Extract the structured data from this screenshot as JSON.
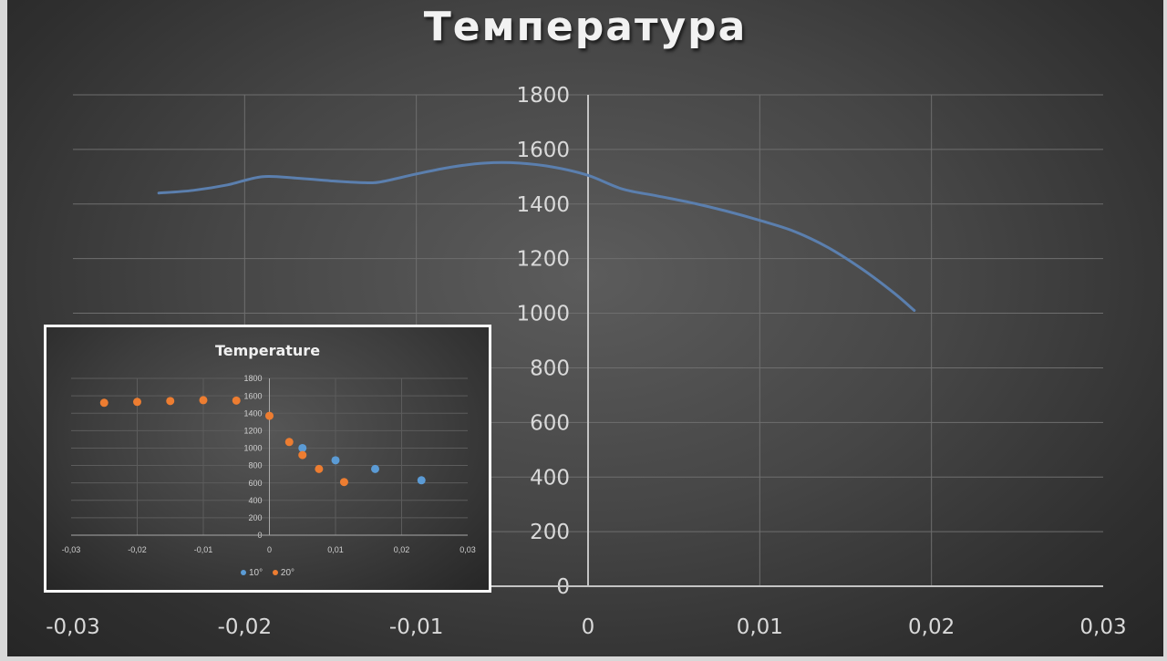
{
  "chart_data": [
    {
      "type": "line",
      "title": "Температура",
      "xlim": [
        -0.03,
        0.03
      ],
      "ylim": [
        0,
        1800
      ],
      "x_ticks": [
        -0.03,
        -0.02,
        -0.01,
        0,
        0.01,
        0.02,
        0.03
      ],
      "x_tick_labels": [
        "-0,03",
        "-0,02",
        "-0,01",
        "0",
        "0,01",
        "0,02",
        "0,03"
      ],
      "y_ticks": [
        0,
        200,
        400,
        600,
        800,
        1000,
        1200,
        1400,
        1600,
        1800
      ],
      "y_tick_labels": [
        "0",
        "200",
        "400",
        "600",
        "800",
        "1000",
        "1200",
        "1400",
        "1600",
        "1800"
      ],
      "grid": true,
      "series": [
        {
          "color": "#5b7fae",
          "x": [
            -0.025,
            -0.023,
            -0.021,
            -0.019,
            -0.017,
            -0.015,
            -0.013,
            -0.012,
            -0.01,
            -0.008,
            -0.006,
            -0.004,
            -0.002,
            0,
            0.002,
            0.004,
            0.006,
            0.008,
            0.01,
            0.012,
            0.014,
            0.016,
            0.0178,
            0.019
          ],
          "y": [
            1440,
            1450,
            1470,
            1500,
            1495,
            1485,
            1478,
            1482,
            1510,
            1535,
            1550,
            1550,
            1535,
            1505,
            1455,
            1430,
            1405,
            1375,
            1340,
            1300,
            1240,
            1160,
            1075,
            1010
          ]
        }
      ]
    },
    {
      "type": "scatter",
      "title": "Temperature",
      "xlim": [
        -0.03,
        0.03
      ],
      "ylim": [
        0,
        1800
      ],
      "x_ticks": [
        -0.03,
        -0.02,
        -0.01,
        0,
        0.01,
        0.02,
        0.03
      ],
      "x_tick_labels": [
        "-0,03",
        "-0,02",
        "-0,01",
        "0",
        "0,01",
        "0,02",
        "0,03"
      ],
      "y_ticks": [
        0,
        200,
        400,
        600,
        800,
        1000,
        1200,
        1400,
        1600,
        1800
      ],
      "y_tick_labels": [
        "0",
        "200",
        "400",
        "600",
        "800",
        "1000",
        "1200",
        "1400",
        "1600",
        "1800"
      ],
      "grid": true,
      "legend_position": "bottom",
      "series": [
        {
          "name": "10°",
          "color": "#5b9bd5",
          "x": [
            0.005,
            0.01,
            0.016,
            0.023
          ],
          "y": [
            1000,
            860,
            760,
            630
          ]
        },
        {
          "name": "20°",
          "color": "#ed7d31",
          "x": [
            -0.025,
            -0.02,
            -0.015,
            -0.01,
            -0.005,
            0,
            0.003,
            0.005,
            0.0075,
            0.0113
          ],
          "y": [
            1520,
            1530,
            1540,
            1550,
            1545,
            1370,
            1070,
            920,
            760,
            610
          ]
        }
      ]
    }
  ]
}
